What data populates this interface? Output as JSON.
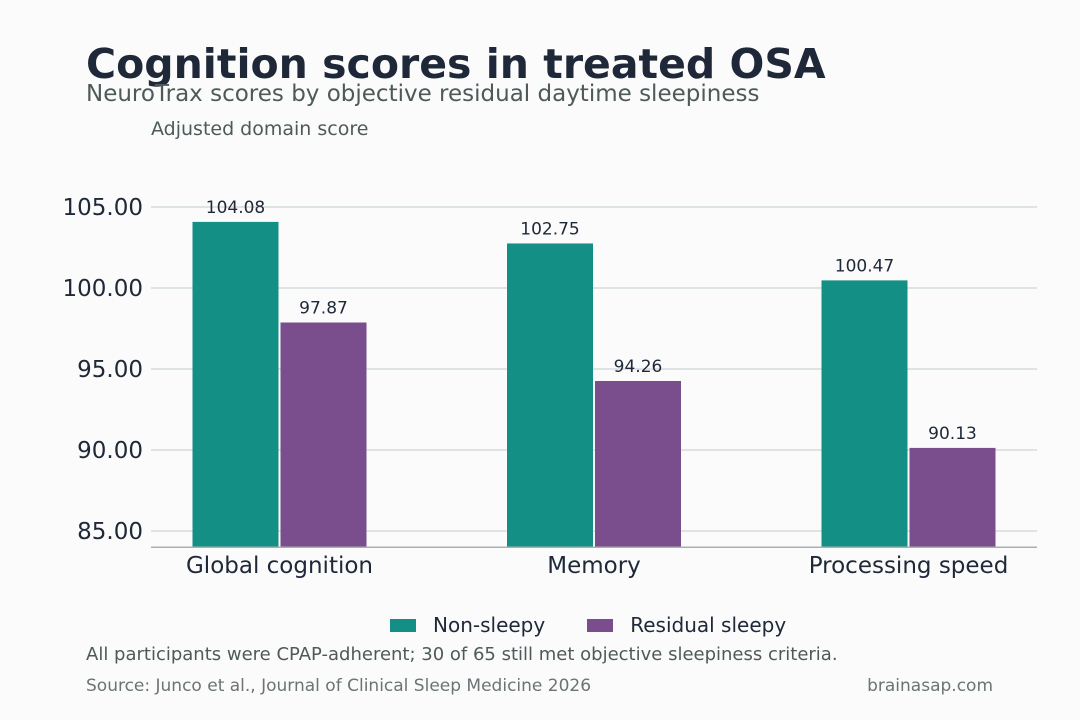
{
  "chart_data": {
    "type": "bar",
    "title": "Cognition scores in treated OSA",
    "subtitle": "NeuroTrax scores by objective residual daytime sleepiness",
    "ylabel": "Adjusted domain score",
    "xlabel": "",
    "categories": [
      "Global cognition",
      "Memory",
      "Processing speed"
    ],
    "series": [
      {
        "name": "Non-sleepy",
        "color": "#148f85",
        "values": [
          104.08,
          102.75,
          100.47
        ],
        "labels": [
          "104.08",
          "102.75",
          "100.47"
        ]
      },
      {
        "name": "Residual sleepy",
        "color": "#7a4d8c",
        "values": [
          97.87,
          94.26,
          90.13
        ],
        "labels": [
          "97.87",
          "94.26",
          "90.13"
        ]
      }
    ],
    "ylim": [
      84.0,
      106.0
    ],
    "yticks": [
      85,
      90,
      95,
      100,
      105
    ],
    "ytick_labels": [
      "85.00",
      "90.00",
      "95.00",
      "100.00",
      "105.00"
    ],
    "grid": true,
    "legend_position": "bottom-center"
  },
  "footer": {
    "note": "All participants were CPAP-adherent; 30 of 65 still met objective sleepiness criteria.",
    "source": "Source: Junco et al., Journal of Clinical Sleep Medicine 2026",
    "site": "brainasap.com"
  }
}
